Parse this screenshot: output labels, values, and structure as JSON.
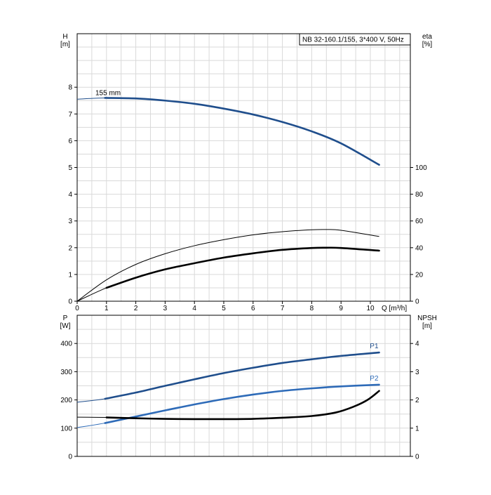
{
  "chart_data": [
    {
      "type": "line",
      "title": "NB 32-160.1/155, 3*400 V, 50Hz",
      "x": {
        "label": "Q [m³/h]",
        "range": [
          0,
          11.35
        ],
        "ticks": [
          0,
          1,
          2,
          3,
          4,
          5,
          6,
          7,
          8,
          9,
          10
        ]
      },
      "y_left": {
        "label": "H",
        "unit": "[m]",
        "range": [
          0,
          10
        ],
        "ticks": [
          0,
          1,
          2,
          3,
          4,
          5,
          6,
          7,
          8
        ]
      },
      "y_right": {
        "label": "eta",
        "unit": "[%]",
        "range": [
          0,
          200
        ],
        "ticks": [
          0,
          20,
          40,
          60,
          80,
          100
        ]
      },
      "grid": true,
      "series": [
        {
          "name": "155 mm",
          "axis": "left",
          "color": "#1f4e8c",
          "x": [
            0,
            0.95,
            2,
            3,
            4,
            5,
            6,
            7,
            8,
            9,
            10.3
          ],
          "y": [
            7.55,
            7.6,
            7.58,
            7.5,
            7.38,
            7.2,
            6.98,
            6.7,
            6.35,
            5.9,
            5.1
          ],
          "operating_from": 0.95
        },
        {
          "axis": "right",
          "color": "#000000",
          "x": [
            0,
            1,
            2,
            3,
            4,
            5,
            6,
            7,
            8,
            8.5,
            9,
            10.3
          ],
          "y": [
            0,
            16,
            27.5,
            35.5,
            41.5,
            46,
            49.6,
            52,
            53.4,
            53.6,
            53,
            48.4
          ]
        },
        {
          "axis": "right",
          "color": "#000000",
          "x": [
            0,
            1,
            2,
            3,
            4,
            5,
            6,
            7,
            8,
            8.5,
            9,
            10.3
          ],
          "y": [
            0,
            10,
            17.6,
            23.8,
            28.4,
            32.6,
            35.8,
            38.4,
            39.8,
            40,
            39.8,
            37.8
          ],
          "operating_from": 0.95
        }
      ]
    },
    {
      "type": "line",
      "x": {
        "range": [
          0,
          11.35
        ],
        "ticks": []
      },
      "y_left": {
        "label": "P",
        "unit": "[W]",
        "range": [
          0,
          500
        ],
        "ticks": [
          0,
          100,
          200,
          300,
          400
        ]
      },
      "y_right": {
        "label": "NPSH",
        "unit": "[m]",
        "range": [
          0,
          5
        ],
        "ticks": [
          0,
          1,
          2,
          3,
          4
        ]
      },
      "grid": true,
      "series": [
        {
          "name": "P1",
          "axis": "left",
          "color": "#1f4e8c",
          "x": [
            0,
            0.95,
            2,
            3,
            4,
            5,
            6,
            7,
            8,
            9,
            10.3
          ],
          "y": [
            192,
            204,
            226,
            250,
            273,
            295,
            314,
            331,
            344,
            356,
            368
          ],
          "operating_from": 0.95
        },
        {
          "name": "P2",
          "axis": "left",
          "color": "#2e6bb8",
          "x": [
            0,
            0.95,
            2,
            3,
            4,
            5,
            6,
            7,
            8,
            9,
            10.3
          ],
          "y": [
            102,
            118,
            141,
            163,
            184,
            203,
            219,
            232,
            241,
            248,
            254
          ],
          "operating_from": 0.95
        },
        {
          "axis": "right",
          "color": "#000000",
          "x": [
            0,
            1,
            2,
            3,
            4,
            5,
            6,
            7,
            8,
            8.8,
            9.4,
            9.9,
            10.3
          ],
          "y": [
            1.39,
            1.38,
            1.35,
            1.33,
            1.32,
            1.32,
            1.33,
            1.37,
            1.43,
            1.55,
            1.75,
            2.0,
            2.32
          ],
          "operating_from": 0.95
        }
      ]
    }
  ]
}
